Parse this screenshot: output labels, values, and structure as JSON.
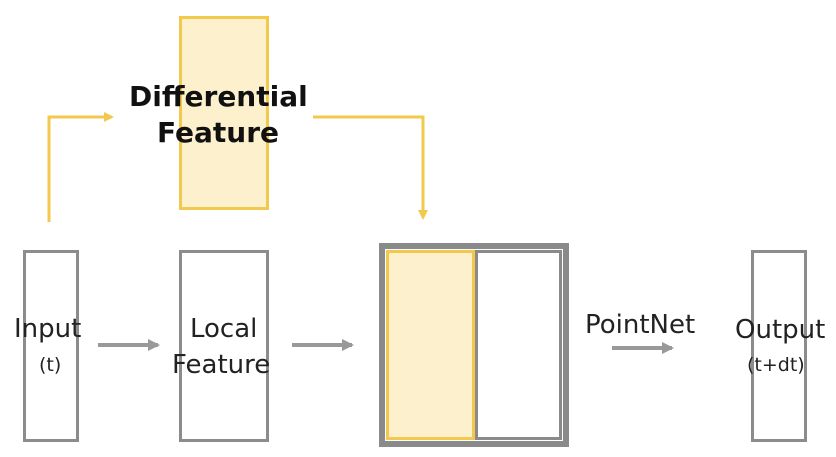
{
  "labels": {
    "differential_line1": "Differential",
    "differential_line2": "Feature",
    "input_main": "Input",
    "input_sub": "(t)",
    "local_line1": "Local",
    "local_line2": "Feature",
    "pointnet": "PointNet",
    "output_main": "Output",
    "output_sub": "(t+dt)"
  },
  "colors": {
    "accent_yellow": "#f2c94c",
    "fill_yellow": "#fdf0cd",
    "gray_border": "#8c8c8c",
    "arrow_gray": "#999999"
  }
}
